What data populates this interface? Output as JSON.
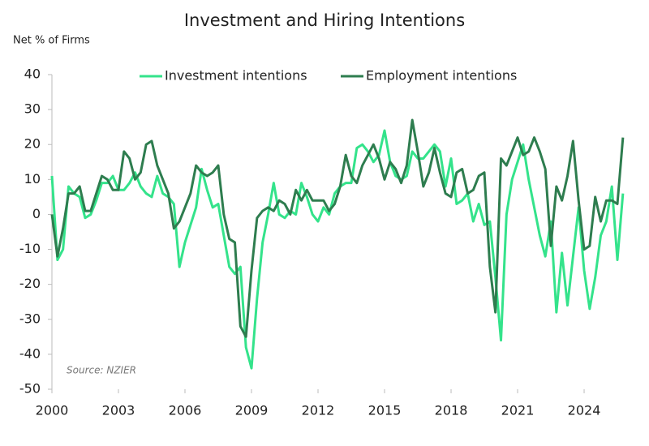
{
  "chart_data": {
    "type": "line",
    "title": "Investment and Hiring Intentions",
    "y_label": "Net % of Firms",
    "annotation": "Source: NZIER",
    "x": [
      2000,
      2000.25,
      2000.5,
      2000.75,
      2001,
      2001.25,
      2001.5,
      2001.75,
      2002,
      2002.25,
      2002.5,
      2002.75,
      2003,
      2003.25,
      2003.5,
      2003.75,
      2004,
      2004.25,
      2004.5,
      2004.75,
      2005,
      2005.25,
      2005.5,
      2005.75,
      2006,
      2006.25,
      2006.5,
      2006.75,
      2007,
      2007.25,
      2007.5,
      2007.75,
      2008,
      2008.25,
      2008.5,
      2008.75,
      2009,
      2009.25,
      2009.5,
      2009.75,
      2010,
      2010.25,
      2010.5,
      2010.75,
      2011,
      2011.25,
      2011.5,
      2011.75,
      2012,
      2012.25,
      2012.5,
      2012.75,
      2013,
      2013.25,
      2013.5,
      2013.75,
      2014,
      2014.25,
      2014.5,
      2014.75,
      2015,
      2015.25,
      2015.5,
      2015.75,
      2016,
      2016.25,
      2016.5,
      2016.75,
      2017,
      2017.25,
      2017.5,
      2017.75,
      2018,
      2018.25,
      2018.5,
      2018.75,
      2019,
      2019.25,
      2019.5,
      2019.75,
      2020,
      2020.25,
      2020.5,
      2020.75,
      2021,
      2021.25,
      2021.5,
      2021.75,
      2022,
      2022.25,
      2022.5,
      2022.75,
      2023,
      2023.25,
      2023.5,
      2023.75,
      2024,
      2024.25,
      2024.5,
      2024.75,
      2025,
      2025.25,
      2025.5,
      2025.75
    ],
    "series": [
      {
        "name": "Investment intentions",
        "color": "#34e38b",
        "values": [
          11,
          -13,
          -10,
          8,
          6,
          5,
          -1,
          0,
          4,
          9,
          9,
          11,
          7,
          7,
          9,
          12,
          8,
          6,
          5,
          11,
          6,
          5,
          3,
          -15,
          -8,
          -3,
          2,
          13,
          7,
          2,
          3,
          -6,
          -15,
          -17,
          -15,
          -38,
          -44,
          -24,
          -8,
          0,
          9,
          0,
          -1,
          1,
          0,
          9,
          5,
          0,
          -2,
          2,
          0,
          6,
          8,
          9,
          9,
          19,
          20,
          18,
          15,
          17,
          24,
          15,
          11,
          10,
          11,
          18,
          16,
          16,
          18,
          20,
          18,
          8,
          16,
          3,
          4,
          6,
          -2,
          3,
          -3,
          -2,
          -18,
          -36,
          0,
          10,
          15,
          20,
          10,
          2,
          -6,
          -12,
          -2,
          -28,
          -11,
          -26,
          -12,
          2,
          -16,
          -27,
          -18,
          -6,
          -2,
          8,
          -13,
          6
        ]
      },
      {
        "name": "Employment intentions",
        "color": "#2e7d4f",
        "values": [
          0,
          -12,
          -4,
          6,
          6,
          8,
          1,
          1,
          6,
          11,
          10,
          7,
          7,
          18,
          16,
          10,
          12,
          20,
          21,
          14,
          10,
          6,
          -4,
          -2,
          2,
          6,
          14,
          12,
          11,
          12,
          14,
          0,
          -7,
          -8,
          -32,
          -35,
          -16,
          -1,
          1,
          2,
          1,
          4,
          3,
          0,
          7,
          4,
          7,
          4,
          4,
          4,
          1,
          3,
          8,
          17,
          11,
          9,
          14,
          17,
          20,
          16,
          10,
          15,
          13,
          9,
          14,
          27,
          18,
          8,
          12,
          19,
          12,
          6,
          5,
          12,
          13,
          6,
          7,
          11,
          12,
          -15,
          -28,
          16,
          14,
          18,
          22,
          17,
          18,
          22,
          18,
          13,
          -9,
          8,
          4,
          11,
          21,
          4,
          -10,
          -9,
          5,
          -2,
          4,
          4,
          3,
          22
        ]
      }
    ],
    "xlim": [
      2000,
      2026
    ],
    "xticks": [
      2000,
      2003,
      2006,
      2009,
      2012,
      2015,
      2018,
      2021,
      2024
    ],
    "ylim": [
      -50,
      40
    ],
    "yticks": [
      -50,
      -40,
      -30,
      -20,
      -10,
      0,
      10,
      20,
      30,
      40
    ],
    "grid": false,
    "legend": "top"
  }
}
